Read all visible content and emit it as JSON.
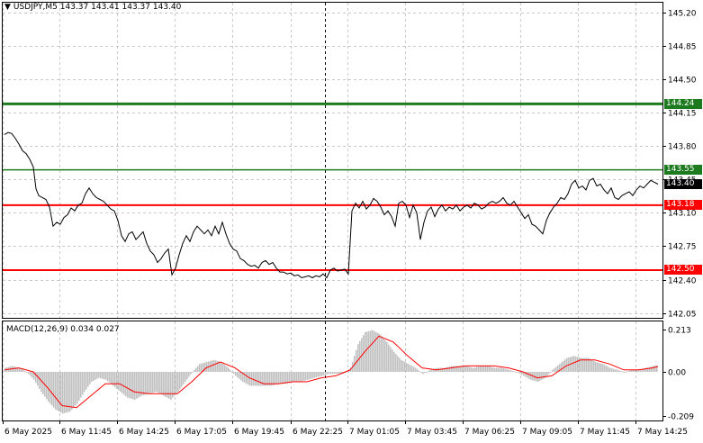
{
  "header": {
    "symbol": "USDJPY,M5",
    "open": "143.37",
    "high": "143.41",
    "low": "143.37",
    "close": "143.40"
  },
  "macd_header": {
    "label": "MACD(12,26,9)",
    "main": "0.034",
    "signal": "0.027"
  },
  "price_axis": {
    "min": 142.0,
    "max": 145.3,
    "ticks": [
      "145.20",
      "144.85",
      "144.50",
      "144.15",
      "143.80",
      "143.45",
      "143.10",
      "142.75",
      "142.40",
      "142.05"
    ]
  },
  "macd_axis": {
    "ticks": [
      "0.213",
      "0.00",
      "-0.209"
    ]
  },
  "levels": [
    {
      "value": 144.24,
      "label": "144.24",
      "color": "#1e7a1e",
      "width": 3
    },
    {
      "value": 143.55,
      "label": "143.55",
      "color": "#1e7a1e",
      "width": 1.5
    },
    {
      "value": 143.18,
      "label": "143.18",
      "color": "#ff0000",
      "width": 2
    },
    {
      "value": 142.5,
      "label": "142.50",
      "color": "#ff0000",
      "width": 2
    }
  ],
  "current_price": {
    "value": 143.4,
    "label": "143.40"
  },
  "time_axis": [
    "6 May 2025",
    "6 May 11:45",
    "6 May 14:25",
    "6 May 17:05",
    "6 May 19:45",
    "6 May 22:25",
    "7 May 01:05",
    "7 May 03:45",
    "7 May 06:25",
    "7 May 09:05",
    "7 May 11:45",
    "7 May 14:25"
  ],
  "colors": {
    "price_line": "#000000",
    "grid": "#c8c8c8",
    "macd_hist": "#c0c0c0",
    "macd_signal": "#ff0000",
    "session_separator": "#000000"
  },
  "chart_data": {
    "type": "line",
    "title": "",
    "price_series": [
      [
        0,
        143.92
      ],
      [
        4,
        143.94
      ],
      [
        8,
        143.93
      ],
      [
        12,
        143.88
      ],
      [
        16,
        143.82
      ],
      [
        20,
        143.75
      ],
      [
        24,
        143.72
      ],
      [
        28,
        143.66
      ],
      [
        32,
        143.58
      ],
      [
        35,
        143.35
      ],
      [
        38,
        143.28
      ],
      [
        42,
        143.26
      ],
      [
        46,
        143.24
      ],
      [
        50,
        143.16
      ],
      [
        54,
        142.96
      ],
      [
        58,
        143.0
      ],
      [
        62,
        142.98
      ],
      [
        66,
        143.05
      ],
      [
        70,
        143.08
      ],
      [
        74,
        143.15
      ],
      [
        78,
        143.12
      ],
      [
        82,
        143.18
      ],
      [
        86,
        143.2
      ],
      [
        90,
        143.3
      ],
      [
        94,
        143.36
      ],
      [
        98,
        143.3
      ],
      [
        102,
        143.26
      ],
      [
        106,
        143.24
      ],
      [
        110,
        143.22
      ],
      [
        114,
        143.18
      ],
      [
        118,
        143.14
      ],
      [
        122,
        143.12
      ],
      [
        126,
        143.02
      ],
      [
        130,
        142.86
      ],
      [
        134,
        142.8
      ],
      [
        138,
        142.88
      ],
      [
        142,
        142.9
      ],
      [
        146,
        142.82
      ],
      [
        150,
        142.86
      ],
      [
        154,
        142.9
      ],
      [
        158,
        142.78
      ],
      [
        162,
        142.7
      ],
      [
        166,
        142.66
      ],
      [
        170,
        142.58
      ],
      [
        174,
        142.62
      ],
      [
        178,
        142.68
      ],
      [
        182,
        142.72
      ],
      [
        186,
        142.45
      ],
      [
        190,
        142.52
      ],
      [
        194,
        142.66
      ],
      [
        198,
        142.78
      ],
      [
        202,
        142.86
      ],
      [
        206,
        142.8
      ],
      [
        210,
        142.9
      ],
      [
        214,
        142.96
      ],
      [
        218,
        142.92
      ],
      [
        222,
        142.88
      ],
      [
        226,
        142.92
      ],
      [
        230,
        142.86
      ],
      [
        234,
        142.96
      ],
      [
        238,
        142.88
      ],
      [
        242,
        143.0
      ],
      [
        246,
        142.88
      ],
      [
        250,
        142.78
      ],
      [
        254,
        142.72
      ],
      [
        258,
        142.7
      ],
      [
        262,
        142.62
      ],
      [
        266,
        142.6
      ],
      [
        270,
        142.56
      ],
      [
        274,
        142.54
      ],
      [
        278,
        142.55
      ],
      [
        282,
        142.52
      ],
      [
        286,
        142.58
      ],
      [
        290,
        142.6
      ],
      [
        294,
        142.56
      ],
      [
        298,
        142.58
      ],
      [
        302,
        142.52
      ],
      [
        306,
        142.48
      ],
      [
        310,
        142.48
      ],
      [
        314,
        142.46
      ],
      [
        318,
        142.47
      ],
      [
        322,
        142.44
      ],
      [
        326,
        142.45
      ],
      [
        330,
        142.42
      ],
      [
        334,
        142.43
      ],
      [
        338,
        142.44
      ],
      [
        342,
        142.42
      ],
      [
        346,
        142.44
      ],
      [
        350,
        142.43
      ],
      [
        354,
        142.46
      ],
      [
        358,
        142.42
      ],
      [
        362,
        142.5
      ],
      [
        366,
        142.52
      ],
      [
        370,
        142.49
      ],
      [
        374,
        142.5
      ],
      [
        378,
        142.51
      ],
      [
        382,
        142.46
      ],
      [
        386,
        143.12
      ],
      [
        390,
        143.2
      ],
      [
        394,
        143.15
      ],
      [
        398,
        143.22
      ],
      [
        402,
        143.14
      ],
      [
        406,
        143.18
      ],
      [
        410,
        143.25
      ],
      [
        414,
        143.22
      ],
      [
        418,
        143.16
      ],
      [
        422,
        143.08
      ],
      [
        426,
        143.12
      ],
      [
        430,
        143.06
      ],
      [
        434,
        142.96
      ],
      [
        438,
        143.2
      ],
      [
        442,
        143.22
      ],
      [
        446,
        143.18
      ],
      [
        450,
        143.05
      ],
      [
        454,
        143.18
      ],
      [
        458,
        143.1
      ],
      [
        462,
        142.82
      ],
      [
        466,
        143.0
      ],
      [
        470,
        143.12
      ],
      [
        474,
        143.16
      ],
      [
        478,
        143.06
      ],
      [
        482,
        143.14
      ],
      [
        486,
        143.18
      ],
      [
        490,
        143.12
      ],
      [
        494,
        143.16
      ],
      [
        498,
        143.14
      ],
      [
        502,
        143.18
      ],
      [
        506,
        143.12
      ],
      [
        510,
        143.16
      ],
      [
        514,
        143.18
      ],
      [
        518,
        143.15
      ],
      [
        522,
        143.2
      ],
      [
        526,
        143.18
      ],
      [
        530,
        143.14
      ],
      [
        534,
        143.16
      ],
      [
        538,
        143.2
      ],
      [
        542,
        143.22
      ],
      [
        546,
        143.2
      ],
      [
        550,
        143.22
      ],
      [
        554,
        143.26
      ],
      [
        558,
        143.2
      ],
      [
        562,
        143.18
      ],
      [
        566,
        143.22
      ],
      [
        570,
        143.16
      ],
      [
        574,
        143.1
      ],
      [
        578,
        143.04
      ],
      [
        582,
        143.08
      ],
      [
        586,
        142.98
      ],
      [
        590,
        142.96
      ],
      [
        594,
        142.92
      ],
      [
        598,
        142.88
      ],
      [
        602,
        143.02
      ],
      [
        606,
        143.1
      ],
      [
        610,
        143.16
      ],
      [
        614,
        143.2
      ],
      [
        618,
        143.26
      ],
      [
        622,
        143.24
      ],
      [
        626,
        143.3
      ],
      [
        630,
        143.4
      ],
      [
        634,
        143.44
      ],
      [
        638,
        143.36
      ],
      [
        642,
        143.38
      ],
      [
        646,
        143.34
      ],
      [
        650,
        143.44
      ],
      [
        654,
        143.46
      ],
      [
        658,
        143.38
      ],
      [
        662,
        143.4
      ],
      [
        666,
        143.34
      ],
      [
        670,
        143.3
      ],
      [
        674,
        143.36
      ],
      [
        678,
        143.26
      ],
      [
        682,
        143.24
      ],
      [
        686,
        143.28
      ],
      [
        690,
        143.3
      ],
      [
        694,
        143.32
      ],
      [
        698,
        143.28
      ],
      [
        702,
        143.34
      ],
      [
        706,
        143.38
      ],
      [
        710,
        143.36
      ],
      [
        714,
        143.4
      ],
      [
        718,
        143.44
      ],
      [
        722,
        143.42
      ],
      [
        726,
        143.4
      ]
    ],
    "macd_hist": [
      [
        0,
        0.02
      ],
      [
        8,
        0.03
      ],
      [
        16,
        0.02
      ],
      [
        24,
        0.0
      ],
      [
        32,
        -0.04
      ],
      [
        40,
        -0.1
      ],
      [
        48,
        -0.15
      ],
      [
        56,
        -0.19
      ],
      [
        64,
        -0.21
      ],
      [
        72,
        -0.2
      ],
      [
        80,
        -0.16
      ],
      [
        88,
        -0.1
      ],
      [
        96,
        -0.05
      ],
      [
        104,
        -0.03
      ],
      [
        112,
        -0.04
      ],
      [
        120,
        -0.07
      ],
      [
        128,
        -0.1
      ],
      [
        136,
        -0.13
      ],
      [
        144,
        -0.14
      ],
      [
        152,
        -0.12
      ],
      [
        160,
        -0.11
      ],
      [
        168,
        -0.1
      ],
      [
        176,
        -0.12
      ],
      [
        184,
        -0.14
      ],
      [
        192,
        -0.1
      ],
      [
        200,
        -0.05
      ],
      [
        208,
        0.0
      ],
      [
        216,
        0.04
      ],
      [
        224,
        0.05
      ],
      [
        232,
        0.06
      ],
      [
        240,
        0.05
      ],
      [
        248,
        0.02
      ],
      [
        256,
        -0.02
      ],
      [
        264,
        -0.05
      ],
      [
        272,
        -0.07
      ],
      [
        280,
        -0.07
      ],
      [
        288,
        -0.07
      ],
      [
        296,
        -0.07
      ],
      [
        304,
        -0.06
      ],
      [
        312,
        -0.06
      ],
      [
        320,
        -0.05
      ],
      [
        328,
        -0.05
      ],
      [
        336,
        -0.04
      ],
      [
        344,
        -0.03
      ],
      [
        352,
        -0.02
      ],
      [
        360,
        -0.01
      ],
      [
        368,
        -0.01
      ],
      [
        376,
        -0.01
      ],
      [
        384,
        0.02
      ],
      [
        392,
        0.14
      ],
      [
        400,
        0.2
      ],
      [
        408,
        0.21
      ],
      [
        416,
        0.19
      ],
      [
        424,
        0.15
      ],
      [
        432,
        0.1
      ],
      [
        440,
        0.06
      ],
      [
        448,
        0.04
      ],
      [
        456,
        0.02
      ],
      [
        464,
        -0.01
      ],
      [
        472,
        0.01
      ],
      [
        480,
        0.02
      ],
      [
        488,
        0.02
      ],
      [
        496,
        0.03
      ],
      [
        504,
        0.03
      ],
      [
        512,
        0.03
      ],
      [
        520,
        0.02
      ],
      [
        528,
        0.03
      ],
      [
        536,
        0.03
      ],
      [
        544,
        0.02
      ],
      [
        552,
        0.02
      ],
      [
        560,
        0.01
      ],
      [
        568,
        0.0
      ],
      [
        576,
        -0.02
      ],
      [
        584,
        -0.04
      ],
      [
        592,
        -0.05
      ],
      [
        600,
        -0.03
      ],
      [
        608,
        0.01
      ],
      [
        616,
        0.04
      ],
      [
        624,
        0.07
      ],
      [
        632,
        0.08
      ],
      [
        640,
        0.07
      ],
      [
        648,
        0.07
      ],
      [
        656,
        0.05
      ],
      [
        664,
        0.04
      ],
      [
        672,
        0.02
      ],
      [
        680,
        0.01
      ],
      [
        688,
        0.0
      ],
      [
        696,
        0.01
      ],
      [
        704,
        0.01
      ],
      [
        712,
        0.02
      ],
      [
        720,
        0.03
      ],
      [
        726,
        0.034
      ]
    ],
    "macd_signal": [
      [
        0,
        0.01
      ],
      [
        16,
        0.02
      ],
      [
        32,
        0.0
      ],
      [
        48,
        -0.08
      ],
      [
        64,
        -0.17
      ],
      [
        80,
        -0.18
      ],
      [
        96,
        -0.12
      ],
      [
        112,
        -0.06
      ],
      [
        128,
        -0.06
      ],
      [
        144,
        -0.1
      ],
      [
        160,
        -0.11
      ],
      [
        176,
        -0.11
      ],
      [
        192,
        -0.11
      ],
      [
        208,
        -0.05
      ],
      [
        224,
        0.02
      ],
      [
        240,
        0.05
      ],
      [
        256,
        0.02
      ],
      [
        272,
        -0.03
      ],
      [
        288,
        -0.06
      ],
      [
        304,
        -0.06
      ],
      [
        320,
        -0.05
      ],
      [
        336,
        -0.05
      ],
      [
        352,
        -0.03
      ],
      [
        368,
        -0.02
      ],
      [
        384,
        0.01
      ],
      [
        400,
        0.1
      ],
      [
        416,
        0.18
      ],
      [
        432,
        0.15
      ],
      [
        448,
        0.08
      ],
      [
        464,
        0.02
      ],
      [
        480,
        0.01
      ],
      [
        496,
        0.02
      ],
      [
        512,
        0.03
      ],
      [
        528,
        0.03
      ],
      [
        544,
        0.03
      ],
      [
        560,
        0.02
      ],
      [
        576,
        0.0
      ],
      [
        592,
        -0.03
      ],
      [
        608,
        -0.02
      ],
      [
        624,
        0.03
      ],
      [
        640,
        0.06
      ],
      [
        656,
        0.06
      ],
      [
        672,
        0.04
      ],
      [
        688,
        0.01
      ],
      [
        704,
        0.01
      ],
      [
        720,
        0.02
      ],
      [
        726,
        0.027
      ]
    ]
  }
}
